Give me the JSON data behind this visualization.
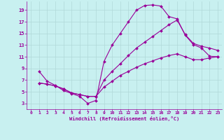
{
  "background_color": "#c8f0f0",
  "grid_color": "#b0d8d8",
  "line_color": "#990099",
  "marker": "D",
  "markersize": 2,
  "linewidth": 0.8,
  "xlabel": "Windchill (Refroidissement éolien,°C)",
  "xlabel_color": "#990099",
  "xlim": [
    -0.5,
    23.5
  ],
  "ylim": [
    2,
    20.5
  ],
  "xticks": [
    0,
    1,
    2,
    3,
    4,
    5,
    6,
    7,
    8,
    9,
    10,
    11,
    12,
    13,
    14,
    15,
    16,
    17,
    18,
    19,
    20,
    21,
    22,
    23
  ],
  "yticks": [
    3,
    5,
    7,
    9,
    11,
    13,
    15,
    17,
    19
  ],
  "tick_color": "#990099",
  "series1_x": [
    1,
    2,
    3,
    4,
    5,
    6,
    7,
    8,
    9,
    10,
    11,
    12,
    13,
    14,
    15,
    16,
    17,
    18,
    19,
    20,
    21,
    22,
    23
  ],
  "series1_y": [
    8.5,
    6.8,
    6.1,
    5.2,
    4.7,
    4.2,
    3.0,
    3.5,
    10.2,
    13.0,
    15.0,
    17.0,
    19.0,
    19.8,
    19.9,
    19.7,
    17.9,
    17.5,
    14.7,
    13.1,
    12.5,
    11.1,
    11.0
  ],
  "series2_x": [
    1,
    2,
    3,
    4,
    5,
    6,
    7,
    8,
    9,
    10,
    11,
    12,
    13,
    14,
    15,
    16,
    17,
    18,
    19,
    20,
    21,
    22,
    23
  ],
  "series2_y": [
    6.5,
    6.3,
    6.0,
    5.5,
    4.8,
    4.5,
    4.2,
    4.2,
    7.0,
    8.5,
    9.8,
    11.2,
    12.5,
    13.5,
    14.5,
    15.5,
    16.5,
    17.3,
    14.8,
    13.3,
    12.8,
    12.5,
    12.1
  ],
  "series3_x": [
    1,
    2,
    3,
    4,
    5,
    6,
    7,
    8,
    9,
    10,
    11,
    12,
    13,
    14,
    15,
    16,
    17,
    18,
    19,
    20,
    21,
    22,
    23
  ],
  "series3_y": [
    6.5,
    6.3,
    6.0,
    5.5,
    4.8,
    4.5,
    4.2,
    4.2,
    5.8,
    6.8,
    7.8,
    8.5,
    9.2,
    9.8,
    10.3,
    10.8,
    11.2,
    11.5,
    11.0,
    10.5,
    10.5,
    10.8,
    11.0
  ]
}
